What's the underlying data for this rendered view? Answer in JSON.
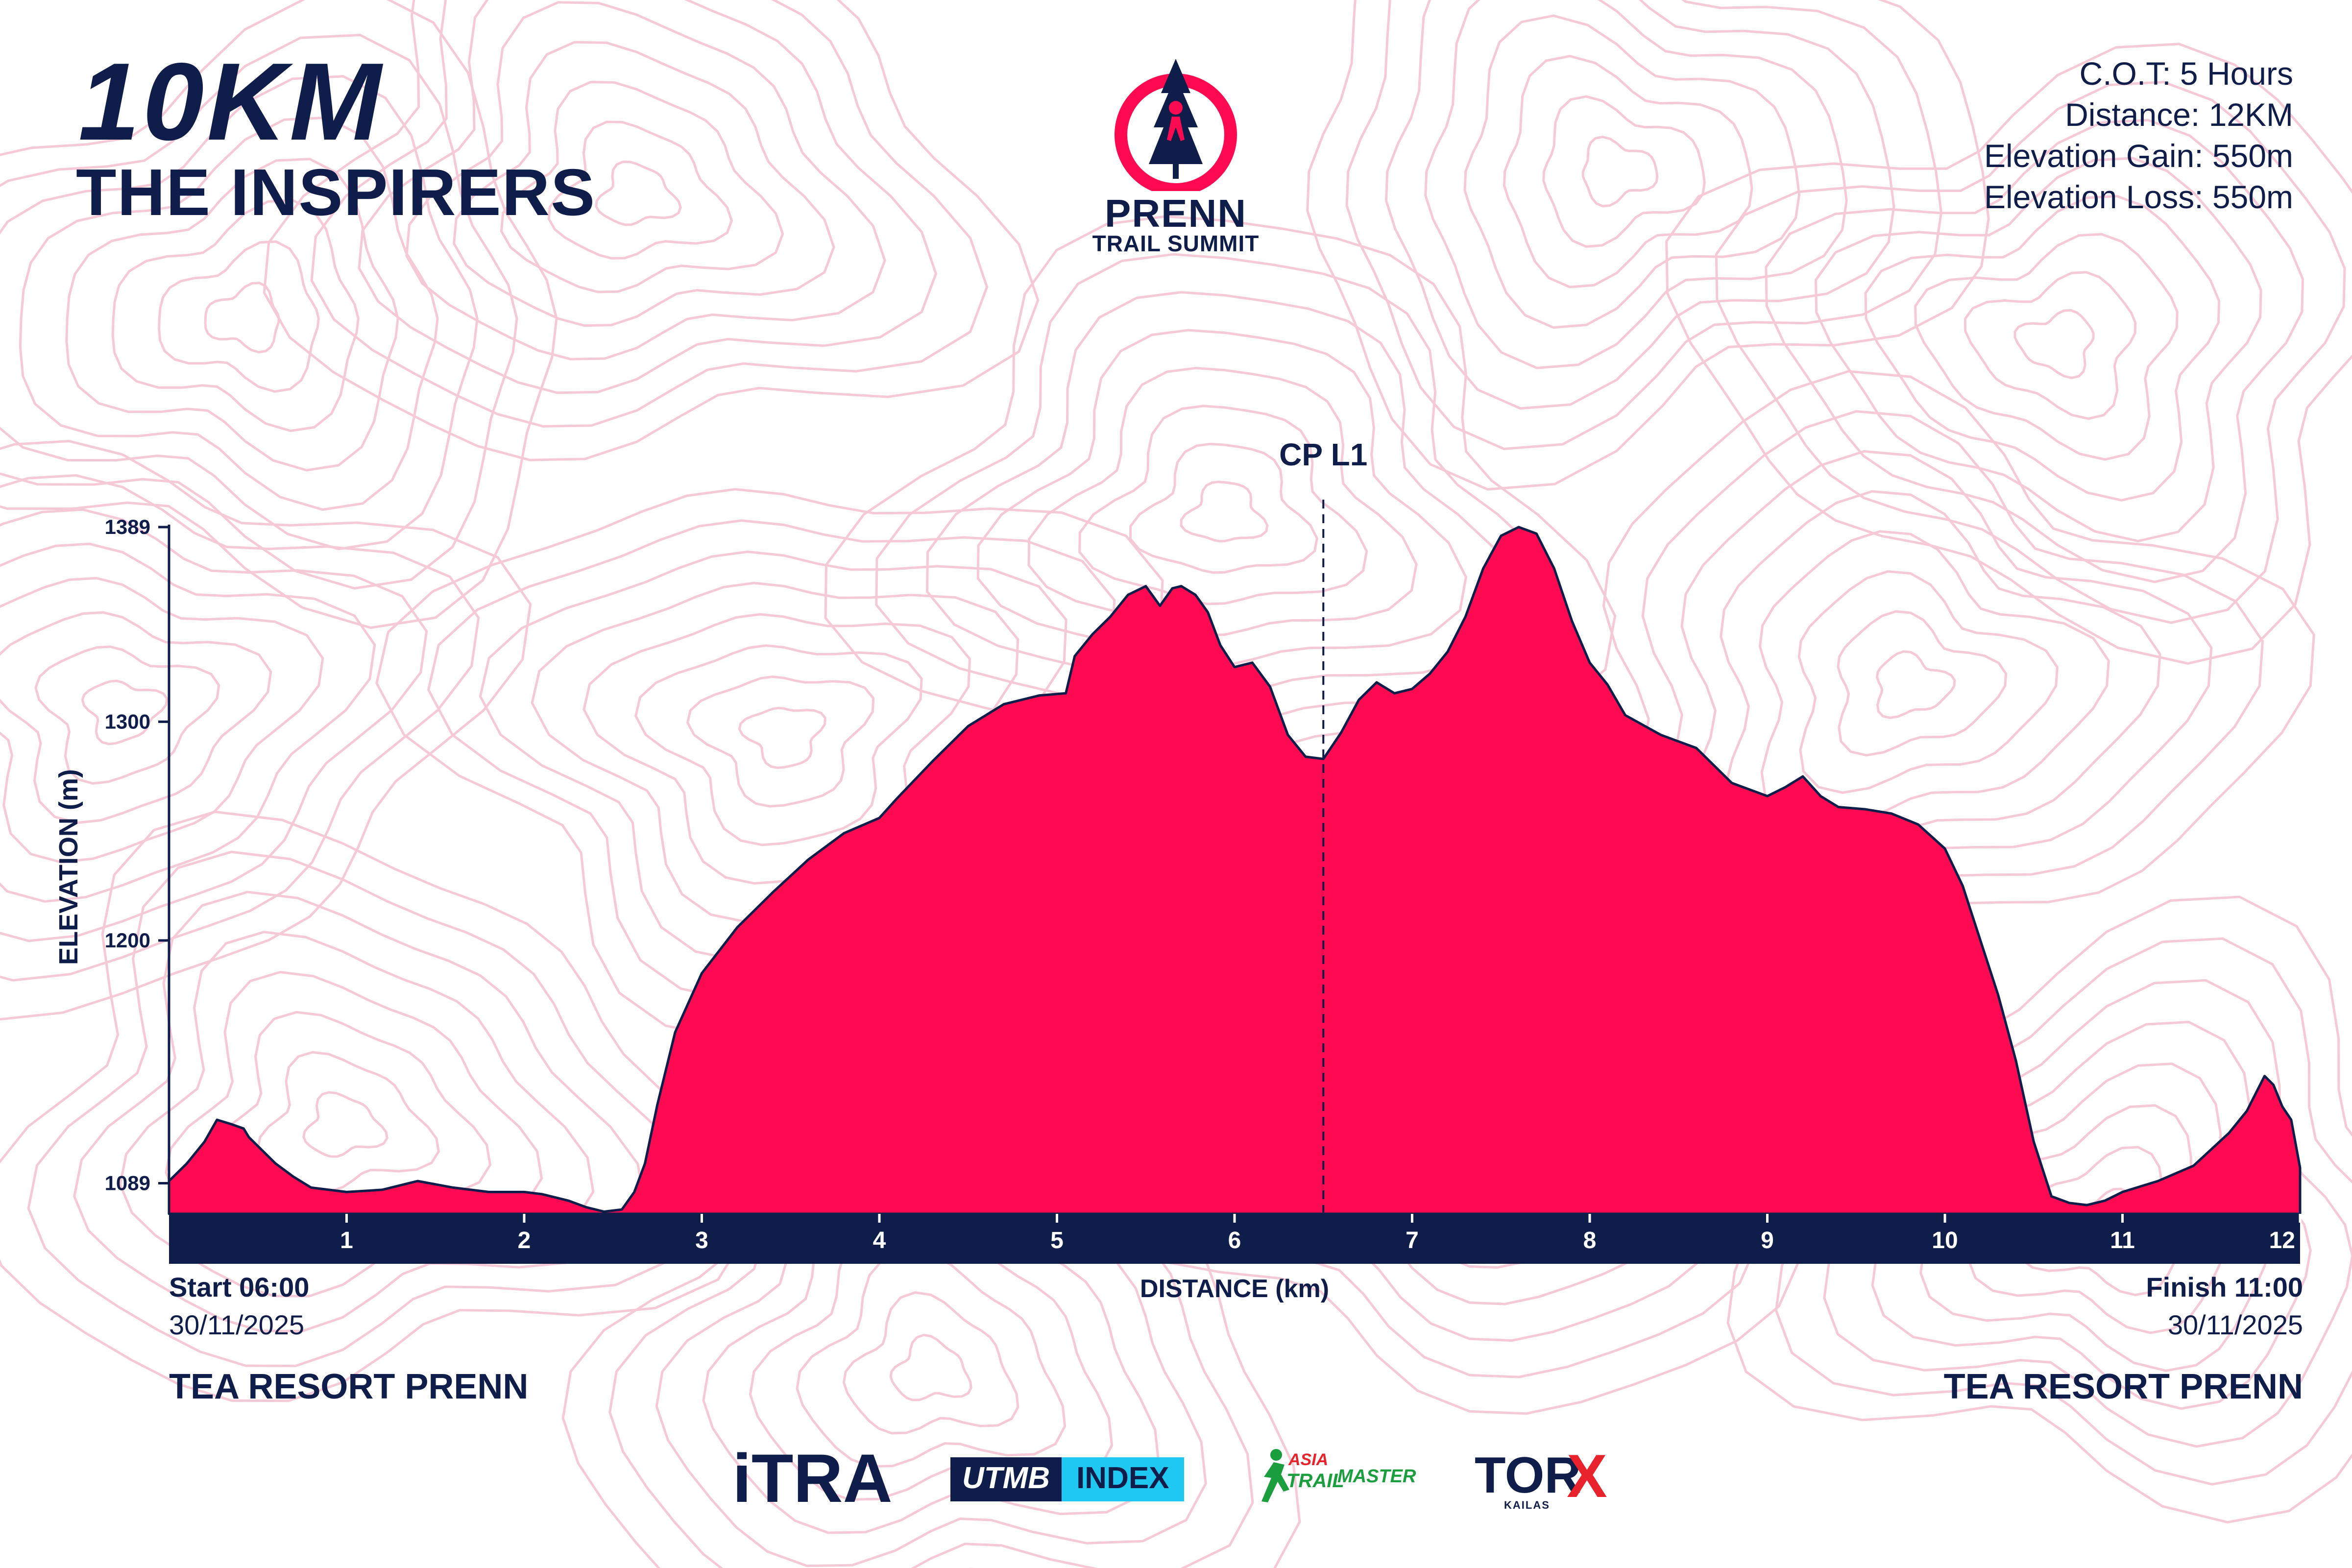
{
  "header": {
    "distance_label": "10KM",
    "race_name": "THE INSPIRERS"
  },
  "brand": {
    "line1": "PRENN",
    "line2": "TRAIL SUMMIT"
  },
  "specs": [
    "C.O.T: 5 Hours",
    "Distance: 12KM",
    "Elevation Gain: 550m",
    "Elevation Loss: 550m"
  ],
  "start": {
    "label": "Start 06:00",
    "date": "30/11/2025",
    "location": "TEA RESORT PRENN"
  },
  "finish": {
    "label": "Finish 11:00",
    "date": "30/11/2025",
    "location": "TEA RESORT PRENN"
  },
  "sponsors": {
    "itra": "iTRA",
    "utmb_a": "UTMB",
    "utmb_b": "INDEX",
    "asia_a": "ASIA",
    "asia_b": "TRAIL",
    "asia_c": "MASTER",
    "torx_a": "TOR",
    "torx_b": "X",
    "torx_c": "KAILAS"
  },
  "colors": {
    "fill": "#ff0a50",
    "navy": "#0f1d4a",
    "contour": "#f6c9d6"
  },
  "chart_data": {
    "type": "area",
    "xlabel": "DISTANCE (km)",
    "ylabel": "ELEVATION (m)",
    "xlim": [
      0,
      12
    ],
    "ylim": [
      1075,
      1389
    ],
    "x_ticks": [
      1,
      2,
      3,
      4,
      5,
      6,
      7,
      8,
      9,
      10,
      11,
      12
    ],
    "y_ticks": [
      1089,
      1200,
      1300,
      1389
    ],
    "checkpoint": {
      "label": "CP L1",
      "x": 6.5
    },
    "x": [
      0,
      0.1,
      0.2,
      0.27,
      0.35,
      0.42,
      0.45,
      0.5,
      0.6,
      0.7,
      0.8,
      0.9,
      1.0,
      1.2,
      1.4,
      1.6,
      1.8,
      2.0,
      2.1,
      2.25,
      2.35,
      2.45,
      2.55,
      2.62,
      2.68,
      2.75,
      2.85,
      3.0,
      3.2,
      3.4,
      3.6,
      3.8,
      4.0,
      4.1,
      4.3,
      4.5,
      4.7,
      4.9,
      5.05,
      5.1,
      5.2,
      5.3,
      5.4,
      5.5,
      5.58,
      5.65,
      5.7,
      5.78,
      5.85,
      5.92,
      6.0,
      6.1,
      6.2,
      6.3,
      6.4,
      6.5,
      6.6,
      6.7,
      6.8,
      6.9,
      7.0,
      7.1,
      7.2,
      7.3,
      7.4,
      7.5,
      7.6,
      7.7,
      7.8,
      7.9,
      8.0,
      8.1,
      8.2,
      8.4,
      8.6,
      8.8,
      9.0,
      9.1,
      9.2,
      9.3,
      9.4,
      9.55,
      9.7,
      9.85,
      10.0,
      10.1,
      10.2,
      10.3,
      10.4,
      10.5,
      10.6,
      10.7,
      10.8,
      10.9,
      11.0,
      11.2,
      11.4,
      11.6,
      11.7,
      11.75,
      11.8,
      11.85,
      11.9,
      11.95,
      12.0
    ],
    "y": [
      1090,
      1098,
      1108,
      1118,
      1116,
      1114,
      1110,
      1106,
      1098,
      1092,
      1087,
      1086,
      1085,
      1086,
      1090,
      1087,
      1085,
      1085,
      1084,
      1081,
      1078,
      1076,
      1077,
      1085,
      1098,
      1125,
      1158,
      1185,
      1206,
      1222,
      1237,
      1249,
      1256,
      1265,
      1282,
      1298,
      1308,
      1312,
      1313,
      1330,
      1340,
      1348,
      1358,
      1362,
      1353,
      1361,
      1362,
      1358,
      1350,
      1335,
      1325,
      1327,
      1316,
      1294,
      1284,
      1283,
      1295,
      1310,
      1318,
      1313,
      1315,
      1322,
      1332,
      1348,
      1370,
      1385,
      1389,
      1386,
      1370,
      1346,
      1327,
      1317,
      1303,
      1294,
      1288,
      1272,
      1266,
      1270,
      1275,
      1266,
      1261,
      1260,
      1258,
      1253,
      1242,
      1225,
      1200,
      1175,
      1145,
      1108,
      1083,
      1080,
      1079,
      1081,
      1085,
      1090,
      1097,
      1112,
      1122,
      1130,
      1138,
      1134,
      1124,
      1118,
      1096
    ]
  }
}
